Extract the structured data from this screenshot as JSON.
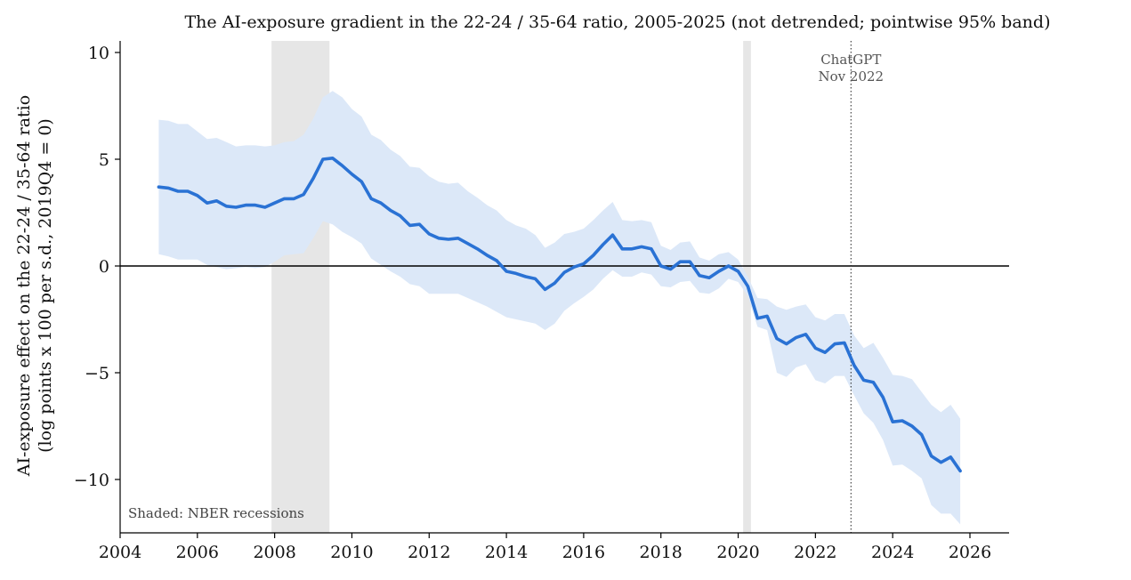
{
  "chart_data": {
    "type": "line",
    "title": "The AI-exposure gradient in the 22-24 / 35-64 ratio, 2005-2025 (not detrended; pointwise 95% band)",
    "ylabel_line1": "AI-exposure effect on the 22-24 / 35-64 ratio",
    "ylabel_line2": "(log points x 100 per s.d., 2019Q4 = 0)",
    "xlabel": "",
    "xlim": [
      2004,
      2026.8
    ],
    "ylim": [
      -12.5,
      10.5
    ],
    "xticks": [
      2004,
      2006,
      2008,
      2010,
      2012,
      2014,
      2016,
      2018,
      2020,
      2022,
      2024,
      2026
    ],
    "xtick_labels": [
      "2004",
      "2006",
      "2008",
      "2010",
      "2012",
      "2014",
      "2016",
      "2018",
      "2020",
      "2022",
      "2024",
      "2026"
    ],
    "yticks": [
      10,
      5,
      0,
      -5,
      -10
    ],
    "ytick_labels": [
      "10",
      "5",
      "0",
      "−5",
      "−10"
    ],
    "grid": false,
    "zero_line": true,
    "colors": {
      "line": "#2a72d4",
      "band": "#dce8f8",
      "recession": "#e6e6e6",
      "axis": "#111111"
    },
    "recessions": [
      {
        "start": 2007.92,
        "end": 2009.42
      },
      {
        "start": 2020.13,
        "end": 2020.33
      }
    ],
    "event": {
      "x": 2022.92,
      "label_line1": "ChatGPT",
      "label_line2": "Nov 2022"
    },
    "note": "Shaded: NBER recessions",
    "series": [
      {
        "x": [
          2005.0,
          2005.25,
          2005.5,
          2005.75,
          2006.0,
          2006.25,
          2006.5,
          2006.75,
          2007.0,
          2007.25,
          2007.5,
          2007.75,
          2008.0,
          2008.25,
          2008.5,
          2008.75,
          2009.0,
          2009.25,
          2009.5,
          2009.75,
          2010.0,
          2010.25,
          2010.5,
          2010.75,
          2011.0,
          2011.25,
          2011.5,
          2011.75,
          2012.0,
          2012.25,
          2012.5,
          2012.75,
          2013.0,
          2013.25,
          2013.5,
          2013.75,
          2014.0,
          2014.25,
          2014.5,
          2014.75,
          2015.0,
          2015.25,
          2015.5,
          2015.75,
          2016.0,
          2016.25,
          2016.5,
          2016.75,
          2017.0,
          2017.25,
          2017.5,
          2017.75,
          2018.0,
          2018.25,
          2018.5,
          2018.75,
          2019.0,
          2019.25,
          2019.5,
          2019.75,
          2020.0,
          2020.25,
          2020.5,
          2020.75,
          2021.0,
          2021.25,
          2021.5,
          2021.75,
          2022.0,
          2022.25,
          2022.5,
          2022.75,
          2023.0,
          2023.25,
          2023.5,
          2023.75,
          2024.0,
          2024.25,
          2024.5,
          2024.75,
          2025.0,
          2025.25,
          2025.5,
          2025.75
        ],
        "y": [
          3.7,
          3.65,
          3.5,
          3.5,
          3.3,
          2.95,
          3.05,
          2.8,
          2.75,
          2.85,
          2.85,
          2.75,
          2.95,
          3.15,
          3.15,
          3.35,
          4.1,
          5.0,
          5.05,
          4.7,
          4.3,
          3.95,
          3.15,
          2.95,
          2.6,
          2.35,
          1.9,
          1.95,
          1.5,
          1.3,
          1.25,
          1.3,
          1.05,
          0.8,
          0.5,
          0.25,
          -0.25,
          -0.35,
          -0.5,
          -0.6,
          -1.1,
          -0.8,
          -0.3,
          -0.05,
          0.1,
          0.5,
          1.0,
          1.45,
          0.8,
          0.8,
          0.9,
          0.8,
          0.0,
          -0.15,
          0.2,
          0.2,
          -0.45,
          -0.55,
          -0.25,
          0.0,
          -0.25,
          -0.95,
          -2.45,
          -2.35,
          -3.4,
          -3.65,
          -3.35,
          -3.2,
          -3.85,
          -4.05,
          -3.65,
          -3.6,
          -4.65,
          -5.35,
          -5.45,
          -6.15,
          -7.3,
          -7.25,
          -7.5,
          -7.9,
          -8.9,
          -9.2,
          -8.95,
          -9.6
        ],
        "lower": [
          0.55,
          0.45,
          0.3,
          0.3,
          0.3,
          0.05,
          -0.05,
          -0.15,
          -0.1,
          -0.05,
          -0.1,
          -0.05,
          0.2,
          0.5,
          0.55,
          0.6,
          1.3,
          2.1,
          1.95,
          1.6,
          1.35,
          1.05,
          0.35,
          0.05,
          -0.25,
          -0.5,
          -0.85,
          -0.95,
          -1.3,
          -1.3,
          -1.3,
          -1.3,
          -1.5,
          -1.7,
          -1.9,
          -2.15,
          -2.4,
          -2.5,
          -2.6,
          -2.7,
          -3.0,
          -2.7,
          -2.1,
          -1.75,
          -1.45,
          -1.1,
          -0.6,
          -0.2,
          -0.5,
          -0.5,
          -0.3,
          -0.4,
          -0.95,
          -1.0,
          -0.75,
          -0.7,
          -1.25,
          -1.3,
          -1.05,
          -0.6,
          -0.75,
          -1.4,
          -2.85,
          -3.0,
          -5.0,
          -5.2,
          -4.75,
          -4.6,
          -5.35,
          -5.5,
          -5.15,
          -5.15,
          -6.05,
          -6.9,
          -7.35,
          -8.15,
          -9.35,
          -9.3,
          -9.6,
          -9.95,
          -11.2,
          -11.6,
          -11.6,
          -12.1
        ],
        "upper": [
          6.85,
          6.8,
          6.65,
          6.65,
          6.3,
          5.95,
          6.0,
          5.8,
          5.6,
          5.65,
          5.65,
          5.6,
          5.65,
          5.8,
          5.85,
          6.15,
          6.9,
          7.9,
          8.2,
          7.9,
          7.35,
          7.0,
          6.15,
          5.9,
          5.45,
          5.15,
          4.65,
          4.6,
          4.2,
          3.95,
          3.85,
          3.9,
          3.5,
          3.2,
          2.85,
          2.6,
          2.15,
          1.9,
          1.75,
          1.45,
          0.85,
          1.1,
          1.5,
          1.6,
          1.75,
          2.15,
          2.6,
          3.0,
          2.15,
          2.1,
          2.15,
          2.05,
          0.95,
          0.75,
          1.1,
          1.15,
          0.4,
          0.25,
          0.55,
          0.65,
          0.3,
          -0.5,
          -1.5,
          -1.55,
          -1.9,
          -2.05,
          -1.9,
          -1.8,
          -2.4,
          -2.55,
          -2.25,
          -2.25,
          -3.25,
          -3.85,
          -3.6,
          -4.3,
          -5.1,
          -5.15,
          -5.3,
          -5.9,
          -6.5,
          -6.85,
          -6.5,
          -7.15
        ]
      }
    ]
  }
}
